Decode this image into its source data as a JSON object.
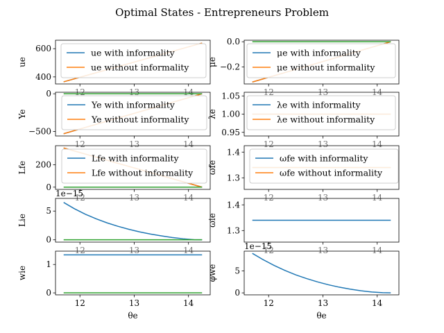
{
  "figure": {
    "title": "Optimal States - Entrepreneurs Problem"
  },
  "colors": {
    "c0": "#1f77b4",
    "c1": "#ff7f0e",
    "c2": "#2ca02c",
    "legendEdge": "#cccccc"
  },
  "chart_data": [
    {
      "type": "line",
      "ylabel": "ue",
      "xlabel": "",
      "xlim": [
        11.55,
        14.4
      ],
      "ylim": [
        350,
        660
      ],
      "xticks": [
        "12",
        "13",
        "14"
      ],
      "xticksHidden": true,
      "yticks": [
        400,
        600
      ],
      "ytick_labels": [
        "400",
        "600"
      ],
      "legend": "upper left",
      "series": [
        {
          "name": "ue with informality",
          "color": "#1f77b4",
          "x": [
            11.7,
            14.25
          ],
          "y": [
            365,
            640
          ]
        },
        {
          "name": "ue without informality",
          "color": "#ff7f0e",
          "x": [
            11.7,
            14.25
          ],
          "y": [
            365,
            640
          ]
        }
      ]
    },
    {
      "type": "line",
      "ylabel": "μe",
      "xlabel": "",
      "xlim": [
        11.55,
        14.4
      ],
      "ylim": [
        -0.335,
        0.012
      ],
      "xticks": [
        "12",
        "13",
        "14"
      ],
      "xticksHidden": true,
      "yticks": [
        -0.2,
        0.0
      ],
      "ytick_labels": [
        "−0.2",
        "0.0"
      ],
      "legend": "upper right",
      "series": [
        {
          "name": "μe with informality",
          "color": "#1f77b4",
          "x": [
            11.7,
            14.25
          ],
          "y": [
            -0.32,
            0.0
          ]
        },
        {
          "name": "μe without informality",
          "color": "#ff7f0e",
          "x": [
            11.7,
            14.25
          ],
          "y": [
            -0.32,
            0.0
          ]
        },
        {
          "name": "",
          "color": "#2ca02c",
          "x": [
            11.7,
            14.25
          ],
          "y": [
            0.0,
            0.0
          ]
        }
      ]
    },
    {
      "type": "line",
      "ylabel": "Ye",
      "xlabel": "",
      "xlim": [
        11.55,
        14.4
      ],
      "ylim": [
        -560,
        20
      ],
      "xticks": [
        "12",
        "13",
        "14"
      ],
      "xticksHidden": true,
      "yticks": [
        -500,
        0
      ],
      "ytick_labels": [
        "−500",
        "0"
      ],
      "legend": "upper right",
      "series": [
        {
          "name": "Ye with informality",
          "color": "#1f77b4",
          "x": [
            11.7,
            14.25
          ],
          "y": [
            -530,
            0
          ]
        },
        {
          "name": "Ye without informality",
          "color": "#ff7f0e",
          "x": [
            11.7,
            14.25
          ],
          "y": [
            -530,
            0
          ]
        },
        {
          "name": "",
          "color": "#2ca02c",
          "x": [
            11.7,
            14.25
          ],
          "y": [
            0,
            0
          ]
        }
      ]
    },
    {
      "type": "line",
      "ylabel": "λe",
      "xlabel": "",
      "xlim": [
        11.55,
        14.4
      ],
      "ylim": [
        0.94,
        1.06
      ],
      "xticks": [
        "12",
        "13",
        "14"
      ],
      "xticksHidden": true,
      "yticks": [
        0.95,
        1.0,
        1.05
      ],
      "ytick_labels": [
        "0.95",
        "1.00",
        "1.05"
      ],
      "legend": "upper right",
      "series": [
        {
          "name": "λe with informality",
          "color": "#1f77b4",
          "x": [
            11.7,
            14.25
          ],
          "y": [
            1.0,
            1.0
          ]
        },
        {
          "name": "λe without informality",
          "color": "#ff7f0e",
          "x": [
            11.7,
            14.25
          ],
          "y": [
            1.0,
            1.0
          ]
        }
      ]
    },
    {
      "type": "line",
      "ylabel": "Lfe",
      "xlabel": "",
      "xlim": [
        11.55,
        14.4
      ],
      "ylim": [
        -20,
        370
      ],
      "xticks": [
        "12",
        "13",
        "14"
      ],
      "xticksHidden": true,
      "yticks": [
        0,
        200
      ],
      "ytick_labels": [
        "0",
        "200"
      ],
      "legend": "upper right",
      "series": [
        {
          "name": "Lfe with informality",
          "color": "#1f77b4",
          "x": [
            11.7,
            14.25
          ],
          "y": [
            350,
            0
          ]
        },
        {
          "name": "Lfe without informality",
          "color": "#ff7f0e",
          "x": [
            11.7,
            14.25
          ],
          "y": [
            350,
            0
          ]
        },
        {
          "name": "",
          "color": "#2ca02c",
          "x": [
            11.7,
            14.25
          ],
          "y": [
            0,
            0
          ]
        }
      ]
    },
    {
      "type": "line",
      "ylabel": "ωfe",
      "xlabel": "",
      "xlim": [
        11.55,
        14.4
      ],
      "ylim": [
        1.255,
        1.425
      ],
      "xticks": [
        "12",
        "13",
        "14"
      ],
      "xticksHidden": true,
      "yticks": [
        1.3,
        1.4
      ],
      "ytick_labels": [
        "1.3",
        "1.4"
      ],
      "legend": "upper left",
      "series": [
        {
          "name": "ωfe with informality",
          "color": "#1f77b4",
          "x": [
            11.7,
            14.25
          ],
          "y": [
            1.34,
            1.34
          ]
        },
        {
          "name": "ωfe without informality",
          "color": "#ff7f0e",
          "x": [
            11.7,
            14.25
          ],
          "y": [
            1.34,
            1.34
          ]
        }
      ]
    },
    {
      "type": "line",
      "ylabel": "Lie",
      "xlabel": "",
      "xlim": [
        11.55,
        14.4
      ],
      "ylim": [
        -0.4,
        7.2
      ],
      "offset": "1e−15",
      "xticks": [
        "12",
        "13",
        "14"
      ],
      "xticksHidden": true,
      "yticks": [
        0,
        5
      ],
      "ytick_labels": [
        "0",
        "5"
      ],
      "legend": "none",
      "series": [
        {
          "name": "",
          "color": "#1f77b4",
          "x": [
            11.7,
            11.9,
            12.1,
            12.3,
            12.5,
            12.7,
            12.9,
            13.1,
            13.3,
            13.5,
            13.7,
            13.9,
            14.1,
            14.25
          ],
          "y": [
            6.5,
            5.4,
            4.45,
            3.65,
            2.95,
            2.35,
            1.83,
            1.38,
            1.0,
            0.68,
            0.4,
            0.18,
            0.03,
            0.0
          ]
        },
        {
          "name": "",
          "color": "#2ca02c",
          "x": [
            11.7,
            14.25
          ],
          "y": [
            0,
            0
          ]
        }
      ]
    },
    {
      "type": "line",
      "ylabel": "ωie",
      "xlabel": "",
      "xlim": [
        11.55,
        14.4
      ],
      "ylim": [
        1.255,
        1.425
      ],
      "xticks": [
        "12",
        "13",
        "14"
      ],
      "xticksHidden": true,
      "yticks": [
        1.3,
        1.4
      ],
      "ytick_labels": [
        "1.3",
        "1.4"
      ],
      "legend": "none",
      "series": [
        {
          "name": "",
          "color": "#1f77b4",
          "x": [
            11.7,
            14.25
          ],
          "y": [
            1.34,
            1.34
          ]
        }
      ]
    },
    {
      "type": "line",
      "ylabel": "wie",
      "xlabel": "θe",
      "xlim": [
        11.55,
        14.4
      ],
      "ylim": [
        -0.07,
        1.47
      ],
      "xticks": [
        "12",
        "13",
        "14"
      ],
      "xticksHidden": false,
      "yticks": [
        0,
        1
      ],
      "ytick_labels": [
        "0",
        "1"
      ],
      "legend": "none",
      "series": [
        {
          "name": "",
          "color": "#1f77b4",
          "x": [
            11.7,
            14.25
          ],
          "y": [
            1.34,
            1.34
          ]
        },
        {
          "name": "",
          "color": "#2ca02c",
          "x": [
            11.7,
            14.25
          ],
          "y": [
            0,
            0
          ]
        }
      ]
    },
    {
      "type": "line",
      "ylabel": "φwe",
      "xlabel": "θe",
      "xlim": [
        11.55,
        14.4
      ],
      "ylim": [
        -0.45,
        9.5
      ],
      "offset": "1e−15",
      "xticks": [
        "12",
        "13",
        "14"
      ],
      "xticksHidden": false,
      "yticks": [
        0,
        5
      ],
      "ytick_labels": [
        "0",
        "5"
      ],
      "legend": "none",
      "series": [
        {
          "name": "",
          "color": "#1f77b4",
          "x": [
            11.7,
            11.9,
            12.1,
            12.3,
            12.5,
            12.7,
            12.9,
            13.1,
            13.3,
            13.5,
            13.7,
            13.9,
            14.1,
            14.25
          ],
          "y": [
            9.0,
            7.55,
            6.25,
            5.1,
            4.1,
            3.25,
            2.5,
            1.85,
            1.3,
            0.85,
            0.48,
            0.2,
            0.04,
            0.0
          ]
        }
      ]
    }
  ]
}
